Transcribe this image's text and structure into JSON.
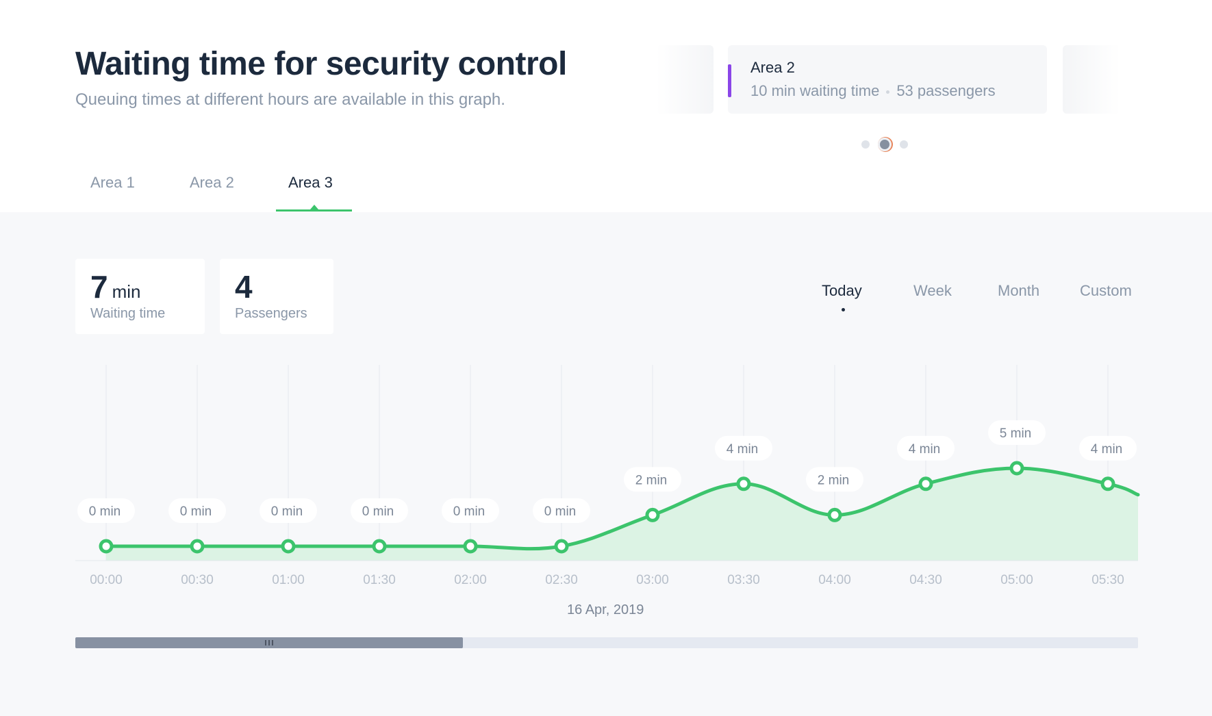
{
  "header": {
    "title": "Waiting time for security control",
    "subtitle": "Queuing times at different hours are available in this graph."
  },
  "carousel": {
    "card": {
      "name": "Area 2",
      "waiting": "10 min waiting time",
      "passengers": "53 passengers",
      "accent_color": "#8b46e8"
    },
    "page_count": 3,
    "active_index": 1
  },
  "tabs": [
    {
      "label": "Area 1",
      "active": false
    },
    {
      "label": "Area 2",
      "active": false
    },
    {
      "label": "Area 3",
      "active": true
    }
  ],
  "stats": {
    "waiting": {
      "value": "7",
      "unit": "min",
      "label": "Waiting time"
    },
    "passengers": {
      "value": "4",
      "label": "Passengers"
    }
  },
  "periods": [
    {
      "label": "Today",
      "active": true
    },
    {
      "label": "Week",
      "active": false
    },
    {
      "label": "Month",
      "active": false
    },
    {
      "label": "Custom",
      "active": false
    }
  ],
  "chart_data": {
    "type": "area",
    "x": [
      "00:00",
      "00:30",
      "01:00",
      "01:30",
      "02:00",
      "02:30",
      "03:00",
      "03:30",
      "04:00",
      "04:30",
      "05:00",
      "05:30"
    ],
    "values": [
      0,
      0,
      0,
      0,
      0,
      0,
      2,
      4,
      2,
      4,
      5,
      4
    ],
    "data_labels": [
      "0 min",
      "0 min",
      "0 min",
      "0 min",
      "0 min",
      "0 min",
      "2 min",
      "4 min",
      "2 min",
      "4 min",
      "5 min",
      "4 min"
    ],
    "xlabel": "16 Apr, 2019",
    "grid": "vertical",
    "line_color": "#3cc46c",
    "fill_color": "#dcf3e4"
  },
  "scrollbar": {
    "position": 0,
    "visible_fraction": 0.365
  }
}
